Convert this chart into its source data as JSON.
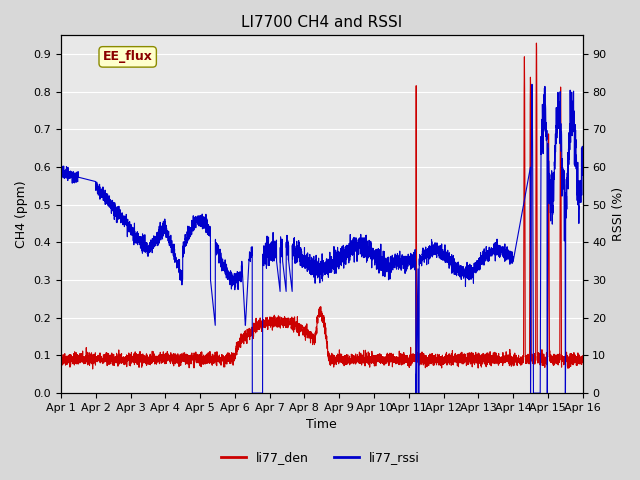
{
  "title": "LI7700 CH4 and RSSI",
  "xlabel": "Time",
  "ylabel_left": "CH4 (ppm)",
  "ylabel_right": "RSSI (%)",
  "ylim_left": [
    0.0,
    0.95
  ],
  "ylim_right": [
    0,
    95
  ],
  "yticks_left": [
    0.0,
    0.1,
    0.2,
    0.3,
    0.4,
    0.5,
    0.6,
    0.7,
    0.8,
    0.9
  ],
  "yticks_right": [
    0,
    10,
    20,
    30,
    40,
    50,
    60,
    70,
    80,
    90
  ],
  "xticklabels": [
    "Apr 1",
    "Apr 2",
    "Apr 3",
    "Apr 4",
    "Apr 5",
    "Apr 6",
    "Apr 7",
    "Apr 8",
    "Apr 9",
    "Apr 10",
    "Apr 11",
    "Apr 12",
    "Apr 13",
    "Apr 14",
    "Apr 15",
    "Apr 16"
  ],
  "color_ch4": "#cc0000",
  "color_rssi": "#0000cc",
  "legend_label_ch4": "li77_den",
  "legend_label_rssi": "li77_rssi",
  "annotation_text": "EE_flux",
  "annotation_color": "#8b0000",
  "annotation_bg": "#ffffcc",
  "annotation_border": "#8b8b00",
  "bg_color": "#e8e8e8",
  "plot_bg": "#f0f0f0",
  "grid_color": "#ffffff",
  "title_fontsize": 11,
  "axis_label_fontsize": 9,
  "tick_fontsize": 8
}
